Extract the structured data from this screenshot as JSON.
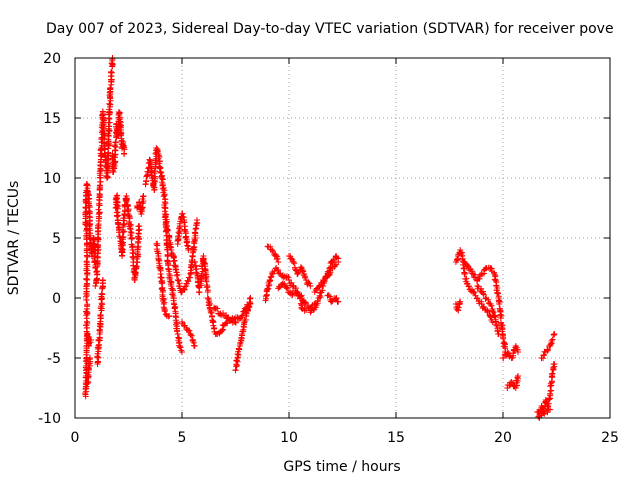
{
  "chart_data": {
    "type": "scatter",
    "title": "Day 007 of 2023, Sidereal Day-to-day VTEC variation (SDTVAR) for receiver pove",
    "xlabel": "GPS time / hours",
    "ylabel": "SDTVAR / TECUs",
    "xlim": [
      0,
      25
    ],
    "ylim": [
      -10,
      20
    ],
    "xticks": [
      "0",
      "5",
      "10",
      "15",
      "20",
      "25"
    ],
    "yticks": [
      "-10",
      "-5",
      "0",
      "5",
      "10",
      "15",
      "20"
    ],
    "grid": true,
    "marker": "+",
    "color": "#ff0000",
    "series": [
      {
        "name": "SDTVAR",
        "tracks": [
          [
            [
              0.5,
              -8.2
            ],
            [
              0.52,
              -6.5
            ],
            [
              0.55,
              -3.5
            ],
            [
              0.55,
              -2.5
            ],
            [
              0.55,
              1.0
            ],
            [
              0.55,
              5.0
            ],
            [
              0.5,
              7.0
            ],
            [
              0.55,
              9.5
            ],
            [
              0.65,
              8.0
            ],
            [
              0.7,
              5.0
            ],
            [
              0.75,
              4.0
            ],
            [
              0.8,
              3.5
            ],
            [
              0.85,
              5.0
            ],
            [
              0.9,
              4.5
            ],
            [
              0.95,
              2.5
            ]
          ],
          [
            [
              0.5,
              -7.5
            ],
            [
              0.6,
              -7.0
            ],
            [
              0.65,
              -6.0
            ],
            [
              0.7,
              -5.0
            ]
          ],
          [
            [
              0.6,
              -3.0
            ],
            [
              0.65,
              -4.0
            ],
            [
              0.75,
              -3.5
            ]
          ],
          [
            [
              0.95,
              1.0
            ],
            [
              1.0,
              1.5
            ],
            [
              1.05,
              3.0
            ],
            [
              1.1,
              6.0
            ],
            [
              1.15,
              9.0
            ],
            [
              1.2,
              11.0
            ],
            [
              1.25,
              13.0
            ],
            [
              1.3,
              15.5
            ],
            [
              1.35,
              14.0
            ],
            [
              1.4,
              12.0
            ],
            [
              1.5,
              10.0
            ],
            [
              1.55,
              11.5
            ],
            [
              1.6,
              15.0
            ],
            [
              1.65,
              17.0
            ],
            [
              1.7,
              18.5
            ],
            [
              1.75,
              20.0
            ]
          ],
          [
            [
              1.05,
              -5.5
            ],
            [
              1.1,
              -4.0
            ],
            [
              1.15,
              -3.0
            ],
            [
              1.2,
              -1.5
            ],
            [
              1.25,
              0.0
            ],
            [
              1.3,
              1.5
            ]
          ],
          [
            [
              1.75,
              12.0
            ],
            [
              1.8,
              10.5
            ],
            [
              1.85,
              11.0
            ],
            [
              1.9,
              13.0
            ],
            [
              1.95,
              14.5
            ],
            [
              2.0,
              13.5
            ],
            [
              2.05,
              15.5
            ],
            [
              2.1,
              15.0
            ],
            [
              2.15,
              14.0
            ],
            [
              2.2,
              12.5
            ],
            [
              2.25,
              13.0
            ],
            [
              2.3,
              12.0
            ]
          ],
          [
            [
              1.9,
              7.5
            ],
            [
              1.95,
              8.5
            ],
            [
              2.0,
              6.5
            ],
            [
              2.1,
              5.0
            ],
            [
              2.2,
              3.5
            ],
            [
              2.3,
              7.0
            ],
            [
              2.4,
              8.5
            ],
            [
              2.5,
              7.0
            ],
            [
              2.6,
              5.5
            ],
            [
              2.7,
              4.0
            ],
            [
              2.8,
              1.5
            ],
            [
              2.9,
              3.0
            ],
            [
              3.0,
              6.0
            ]
          ],
          [
            [
              2.9,
              7.5
            ],
            [
              3.0,
              8.0
            ],
            [
              3.1,
              7.0
            ],
            [
              3.2,
              8.5
            ]
          ],
          [
            [
              3.3,
              9.5
            ],
            [
              3.4,
              10.5
            ],
            [
              3.5,
              11.5
            ],
            [
              3.6,
              10.0
            ],
            [
              3.7,
              9.0
            ],
            [
              3.8,
              12.5
            ],
            [
              3.9,
              12.0
            ],
            [
              4.0,
              10.5
            ],
            [
              4.1,
              9.5
            ],
            [
              4.2,
              8.0
            ],
            [
              4.25,
              6.0
            ],
            [
              4.3,
              4.5
            ],
            [
              4.35,
              3.0
            ],
            [
              4.4,
              2.0
            ],
            [
              4.5,
              1.0
            ],
            [
              4.6,
              0.0
            ],
            [
              4.7,
              -1.5
            ],
            [
              4.8,
              -3.0
            ],
            [
              4.9,
              -4.0
            ],
            [
              5.0,
              -4.5
            ]
          ],
          [
            [
              3.8,
              4.5
            ],
            [
              3.9,
              3.5
            ],
            [
              4.0,
              2.0
            ],
            [
              4.1,
              0.5
            ],
            [
              4.15,
              -0.5
            ],
            [
              4.2,
              -1.0
            ],
            [
              4.3,
              -1.5
            ],
            [
              4.4,
              -1.5
            ]
          ],
          [
            [
              4.2,
              7.0
            ],
            [
              4.3,
              6.0
            ],
            [
              4.4,
              5.0
            ],
            [
              4.5,
              4.0
            ],
            [
              4.6,
              3.5
            ],
            [
              4.7,
              2.5
            ],
            [
              4.8,
              1.5
            ],
            [
              4.9,
              0.8
            ],
            [
              5.0,
              0.5
            ],
            [
              5.2,
              1.0
            ],
            [
              5.4,
              2.0
            ],
            [
              5.5,
              3.5
            ],
            [
              5.6,
              5.0
            ],
            [
              5.7,
              6.5
            ]
          ],
          [
            [
              4.8,
              4.5
            ],
            [
              4.9,
              6.0
            ],
            [
              5.0,
              7.0
            ],
            [
              5.1,
              6.5
            ],
            [
              5.2,
              5.0
            ],
            [
              5.3,
              4.0
            ]
          ],
          [
            [
              5.0,
              -2.0
            ],
            [
              5.2,
              -2.5
            ],
            [
              5.4,
              -3.0
            ],
            [
              5.5,
              -3.5
            ],
            [
              5.6,
              -4.0
            ]
          ],
          [
            [
              5.6,
              3.0
            ],
            [
              5.7,
              2.0
            ],
            [
              5.8,
              0.5
            ],
            [
              5.9,
              1.5
            ],
            [
              6.0,
              3.5
            ],
            [
              6.1,
              2.0
            ],
            [
              6.2,
              0.5
            ]
          ],
          [
            [
              6.2,
              0.0
            ],
            [
              6.3,
              -0.8
            ],
            [
              6.4,
              -1.5
            ],
            [
              6.5,
              -2.5
            ],
            [
              6.6,
              -3.0
            ],
            [
              6.8,
              -2.8
            ],
            [
              7.0,
              -2.2
            ],
            [
              7.2,
              -1.8
            ],
            [
              7.5,
              -2.0
            ],
            [
              7.8,
              -1.5
            ],
            [
              8.0,
              -0.8
            ],
            [
              8.2,
              -0.5
            ]
          ],
          [
            [
              6.5,
              -0.8
            ],
            [
              6.8,
              -1.3
            ],
            [
              7.0,
              -1.5
            ],
            [
              7.3,
              -1.8
            ],
            [
              7.6,
              -1.6
            ]
          ],
          [
            [
              7.5,
              -6.0
            ],
            [
              7.6,
              -5.0
            ],
            [
              7.7,
              -4.0
            ],
            [
              7.8,
              -3.0
            ],
            [
              7.9,
              -2.2
            ],
            [
              8.0,
              -1.5
            ],
            [
              8.1,
              -0.8
            ],
            [
              8.2,
              0.0
            ]
          ],
          [
            [
              9.0,
              4.3
            ],
            [
              9.2,
              4.0
            ],
            [
              9.4,
              3.5
            ],
            [
              9.5,
              3.0
            ]
          ],
          [
            [
              8.9,
              -0.2
            ],
            [
              9.0,
              0.8
            ],
            [
              9.1,
              1.5
            ],
            [
              9.2,
              2.0
            ],
            [
              9.4,
              2.5
            ],
            [
              9.6,
              2.0
            ],
            [
              9.8,
              1.8
            ],
            [
              10.0,
              1.5
            ],
            [
              10.2,
              1.0
            ],
            [
              10.4,
              0.5
            ],
            [
              10.6,
              0.0
            ],
            [
              10.8,
              -0.5
            ],
            [
              11.0,
              -0.8
            ],
            [
              11.2,
              -0.5
            ]
          ],
          [
            [
              9.5,
              0.8
            ],
            [
              9.7,
              1.2
            ],
            [
              9.9,
              0.8
            ],
            [
              10.1,
              0.3
            ],
            [
              10.3,
              0.6
            ],
            [
              10.5,
              0.2
            ],
            [
              10.6,
              -0.8
            ],
            [
              10.8,
              -1.0
            ]
          ],
          [
            [
              10.0,
              3.5
            ],
            [
              10.2,
              3.0
            ],
            [
              10.4,
              2.0
            ],
            [
              10.6,
              2.5
            ],
            [
              10.8,
              1.5
            ],
            [
              11.0,
              1.0
            ]
          ],
          [
            [
              11.0,
              -1.2
            ],
            [
              11.2,
              -0.8
            ],
            [
              11.4,
              0.0
            ],
            [
              11.6,
              1.0
            ],
            [
              11.8,
              2.0
            ],
            [
              12.0,
              3.0
            ],
            [
              12.2,
              3.5
            ],
            [
              12.3,
              3.0
            ]
          ],
          [
            [
              11.2,
              0.5
            ],
            [
              11.4,
              1.0
            ],
            [
              11.6,
              1.5
            ],
            [
              11.8,
              1.8
            ],
            [
              12.0,
              2.5
            ],
            [
              12.2,
              2.8
            ]
          ],
          [
            [
              11.8,
              0.2
            ],
            [
              12.0,
              -0.3
            ],
            [
              12.2,
              0.0
            ],
            [
              12.3,
              -0.3
            ]
          ],
          [
            [
              17.8,
              -0.5
            ],
            [
              17.9,
              -1.0
            ],
            [
              18.0,
              -0.3
            ]
          ],
          [
            [
              17.8,
              3.0
            ],
            [
              17.9,
              3.5
            ],
            [
              18.0,
              4.0
            ],
            [
              18.1,
              3.5
            ],
            [
              18.2,
              2.0
            ],
            [
              18.4,
              1.0
            ],
            [
              18.6,
              0.5
            ],
            [
              18.8,
              0.0
            ],
            [
              19.0,
              -0.5
            ],
            [
              19.2,
              -1.0
            ],
            [
              19.4,
              -1.5
            ],
            [
              19.5,
              -2.0
            ]
          ],
          [
            [
              18.2,
              3.0
            ],
            [
              18.4,
              2.5
            ],
            [
              18.6,
              2.0
            ],
            [
              18.8,
              1.5
            ],
            [
              19.0,
              2.0
            ],
            [
              19.2,
              2.5
            ],
            [
              19.4,
              2.5
            ],
            [
              19.6,
              2.0
            ],
            [
              19.7,
              1.0
            ],
            [
              19.8,
              0.0
            ],
            [
              19.9,
              -1.5
            ],
            [
              20.0,
              -3.0
            ],
            [
              20.1,
              -4.5
            ]
          ],
          [
            [
              18.8,
              1.0
            ],
            [
              19.0,
              0.5
            ],
            [
              19.2,
              0.0
            ],
            [
              19.4,
              -0.5
            ],
            [
              19.6,
              -1.5
            ],
            [
              19.8,
              -3.0
            ]
          ],
          [
            [
              20.0,
              -5.0
            ],
            [
              20.2,
              -4.5
            ],
            [
              20.4,
              -5.0
            ],
            [
              20.6,
              -4.0
            ],
            [
              20.7,
              -4.5
            ]
          ],
          [
            [
              20.2,
              -7.5
            ],
            [
              20.4,
              -7.0
            ],
            [
              20.6,
              -7.5
            ],
            [
              20.7,
              -6.5
            ]
          ],
          [
            [
              21.8,
              -5.0
            ],
            [
              22.0,
              -4.5
            ],
            [
              22.2,
              -4.0
            ],
            [
              22.4,
              -3.0
            ]
          ],
          [
            [
              21.6,
              -9.5
            ],
            [
              21.7,
              -10.0
            ],
            [
              21.8,
              -9.0
            ],
            [
              21.9,
              -9.5
            ],
            [
              22.0,
              -8.5
            ],
            [
              22.1,
              -9.0
            ],
            [
              22.2,
              -8.0
            ],
            [
              22.3,
              -6.5
            ],
            [
              22.4,
              -5.5
            ]
          ],
          [
            [
              21.8,
              -9.8
            ],
            [
              22.0,
              -9.5
            ],
            [
              22.2,
              -9.3
            ]
          ]
        ]
      }
    ]
  }
}
